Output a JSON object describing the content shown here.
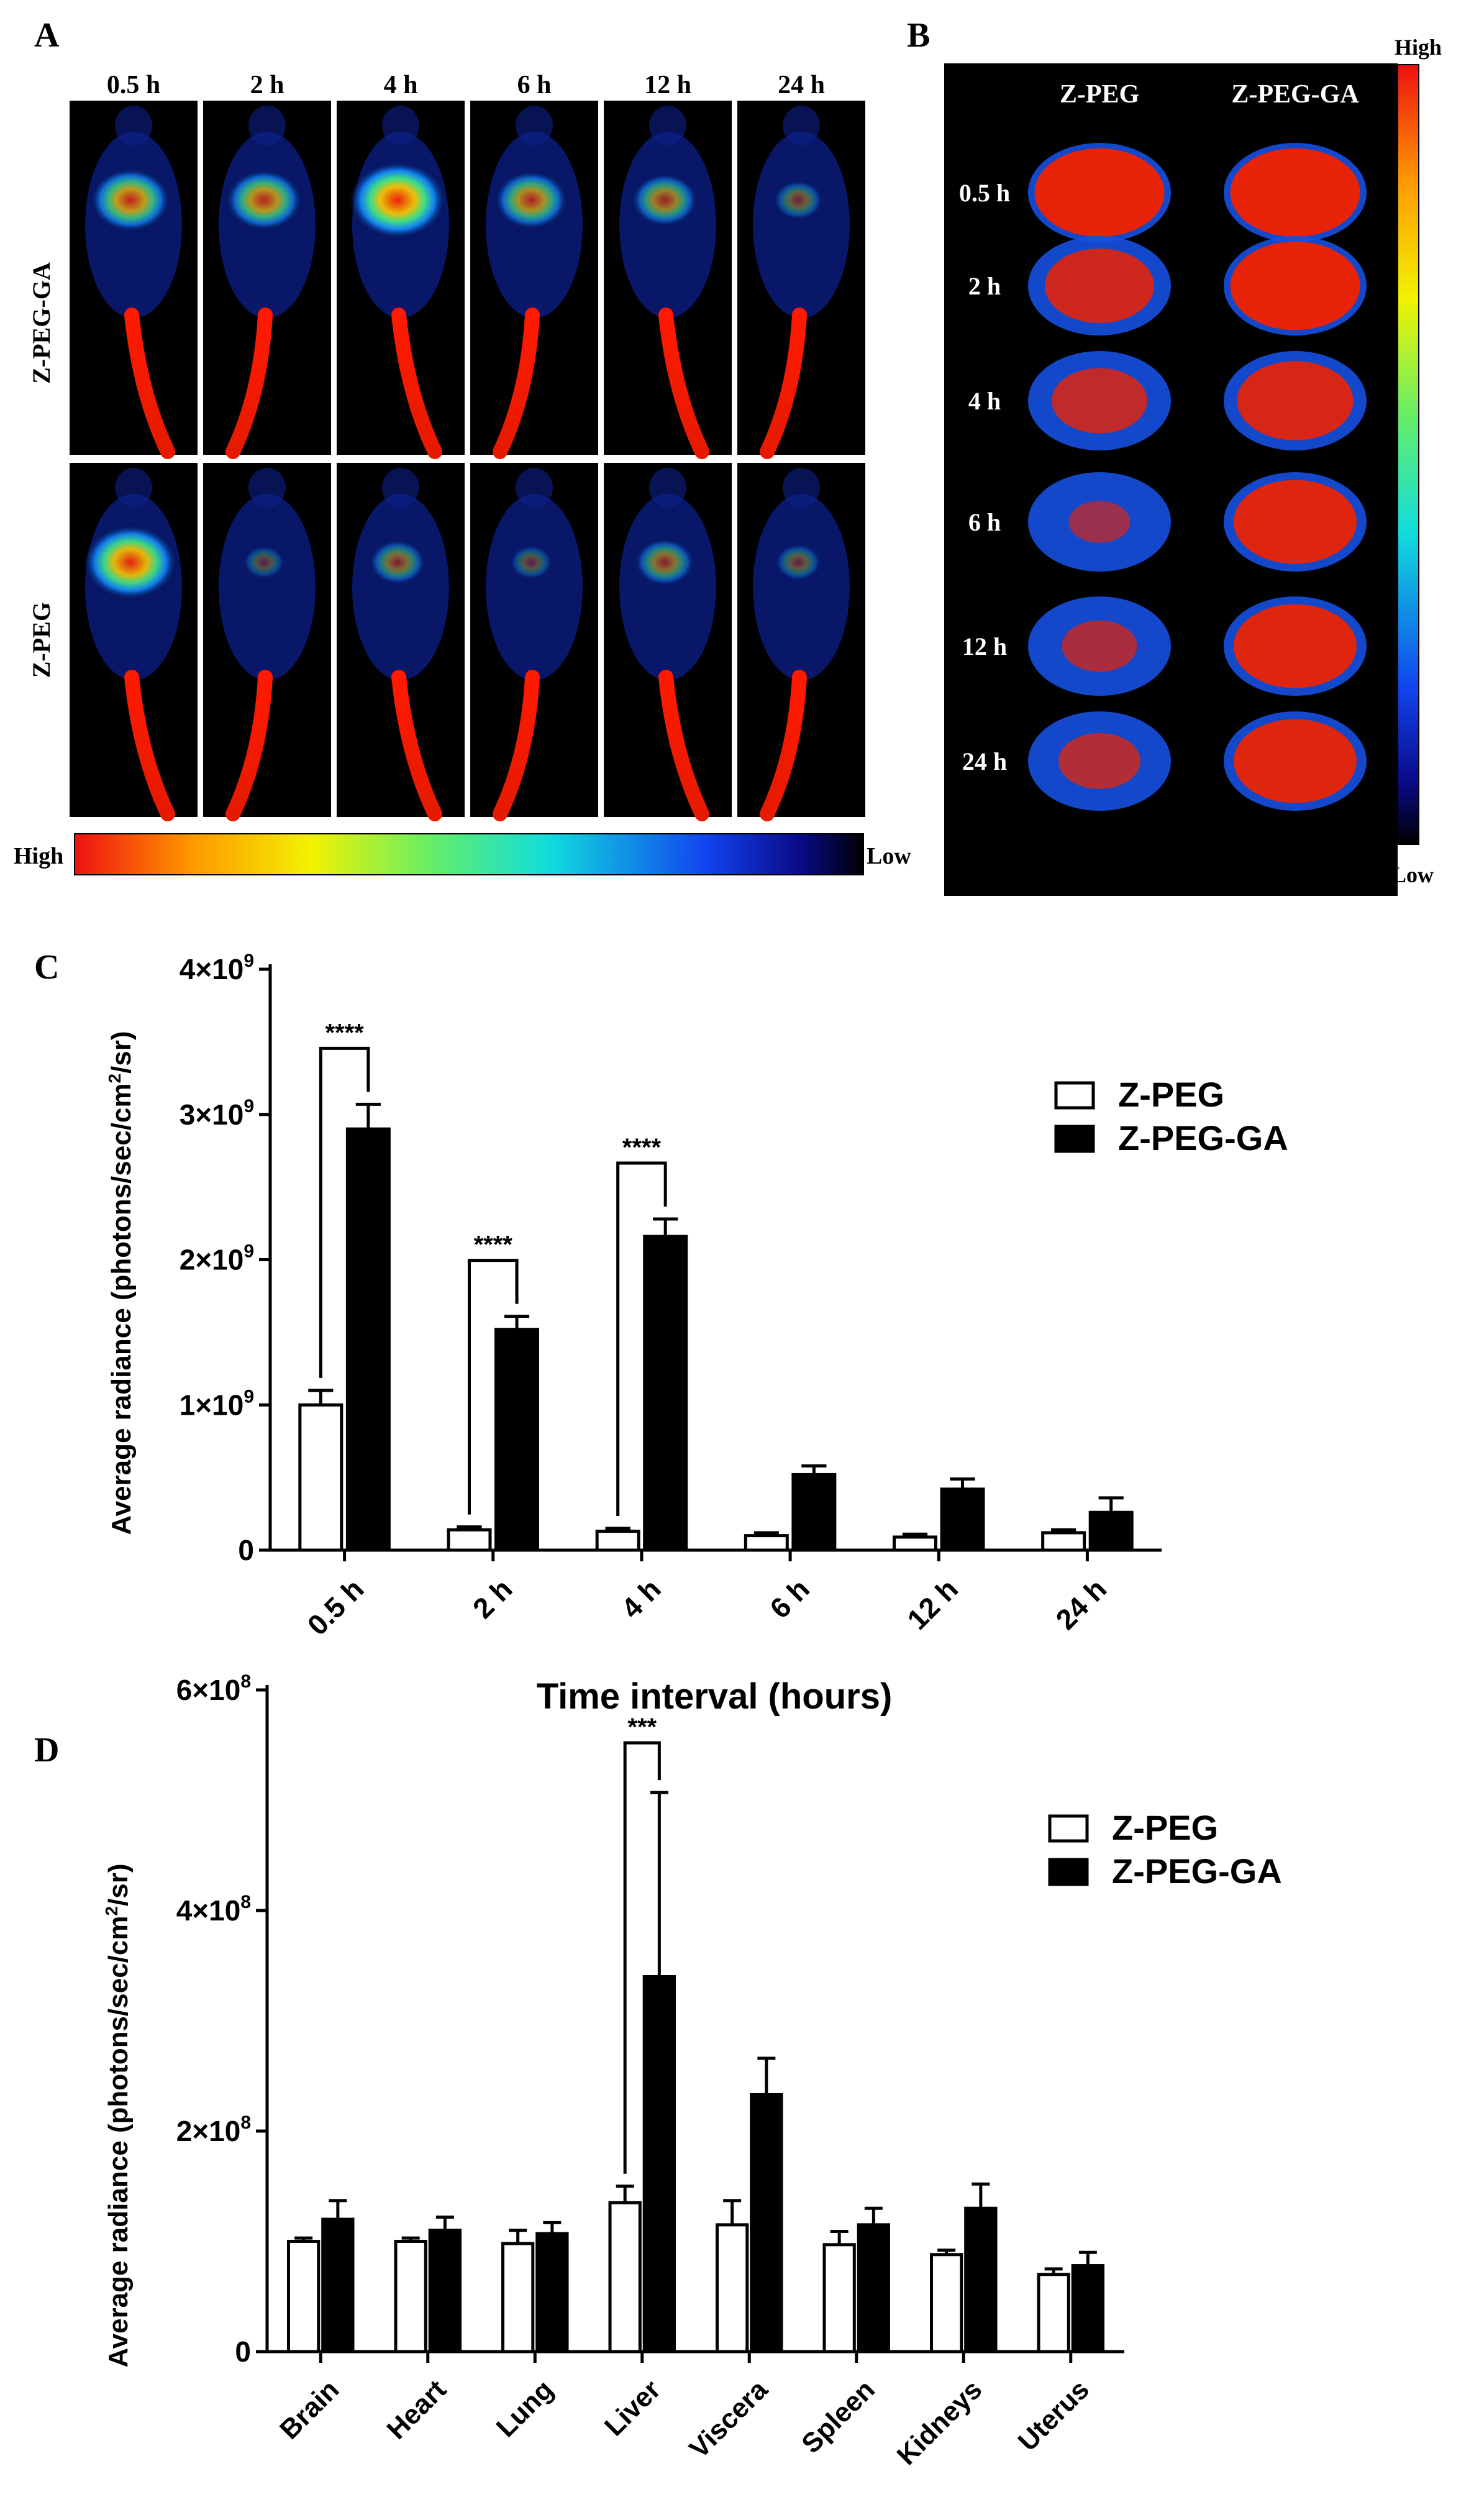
{
  "panel_a": {
    "label": "A",
    "time_labels": [
      "0.5 h",
      "2 h",
      "4 h",
      "6 h",
      "12 h",
      "24 h"
    ],
    "row_labels": [
      "Z-PEG-GA",
      "Z-PEG"
    ],
    "scale_high": "High",
    "scale_low": "Low",
    "intensities": {
      "Z-PEG-GA": [
        0.65,
        0.6,
        0.9,
        0.55,
        0.45,
        0.2
      ],
      "Z-PEG": [
        0.85,
        0.08,
        0.3,
        0.1,
        0.35,
        0.15
      ]
    }
  },
  "panel_b": {
    "label": "B",
    "col_labels": [
      "Z-PEG",
      "Z-PEG-GA"
    ],
    "row_labels": [
      "0.5 h",
      "2 h",
      "4 h",
      "6 h",
      "12 h",
      "24 h"
    ],
    "scale_high": "High",
    "scale_low": "Low",
    "intensities": {
      "Z-PEG": [
        0.95,
        0.8,
        0.7,
        0.45,
        0.55,
        0.6
      ],
      "Z-PEG-GA": [
        0.95,
        0.95,
        0.85,
        0.9,
        0.9,
        0.9
      ]
    }
  },
  "colors": {
    "bar_open": "#ffffff",
    "bar_filled": "#000000",
    "axis": "#000000",
    "image_bg": "#000000"
  },
  "chart_data": [
    {
      "panel_label": "C",
      "type": "bar",
      "title": "",
      "xlabel": "Time interval (hours)",
      "ylabel": "Average radiance (photons/sec/cm²/sr)",
      "y_ticks": [
        {
          "value": 0,
          "base": "0",
          "exp": ""
        },
        {
          "value": 1000000000,
          "base": "1×10",
          "exp": "9"
        },
        {
          "value": 2000000000,
          "base": "2×10",
          "exp": "9"
        },
        {
          "value": 3000000000,
          "base": "3×10",
          "exp": "9"
        },
        {
          "value": 4000000000,
          "base": "4×10",
          "exp": "9"
        }
      ],
      "ylim": [
        0,
        4000000000
      ],
      "categories": [
        "0.5 h",
        "2 h",
        "4 h",
        "6 h",
        "12 h",
        "24 h"
      ],
      "series": [
        {
          "name": "Z-PEG",
          "style": "open",
          "values": [
            1000000000,
            140000000,
            130000000,
            100000000,
            90000000,
            120000000
          ],
          "errors": [
            100000000,
            20000000,
            20000000,
            20000000,
            20000000,
            20000000
          ]
        },
        {
          "name": "Z-PEG-GA",
          "style": "filled",
          "values": [
            2900000000,
            1520000000,
            2160000000,
            520000000,
            420000000,
            260000000
          ],
          "errors": [
            170000000,
            90000000,
            120000000,
            60000000,
            70000000,
            100000000
          ]
        }
      ],
      "significance": [
        {
          "category_index": 0,
          "label": "****"
        },
        {
          "category_index": 1,
          "label": "****"
        },
        {
          "category_index": 2,
          "label": "****"
        }
      ],
      "legend_position": "top-right"
    },
    {
      "panel_label": "D",
      "type": "bar",
      "title": "",
      "xlabel": "",
      "ylabel": "Average radiance (photons/sec/cm²/sr)",
      "y_ticks": [
        {
          "value": 0,
          "base": "0",
          "exp": ""
        },
        {
          "value": 200000000,
          "base": "2×10",
          "exp": "8"
        },
        {
          "value": 400000000,
          "base": "4×10",
          "exp": "8"
        },
        {
          "value": 600000000,
          "base": "6×10",
          "exp": "8"
        }
      ],
      "ylim": [
        0,
        600000000
      ],
      "categories": [
        "Brain",
        "Heart",
        "Lung",
        "Liver",
        "Viscera",
        "Spleen",
        "Kidneys",
        "Uterus"
      ],
      "series": [
        {
          "name": "Z-PEG",
          "style": "open",
          "values": [
            100000000,
            100000000,
            98000000,
            135000000,
            115000000,
            97000000,
            88000000,
            70000000
          ],
          "errors": [
            3000000,
            3000000,
            12000000,
            15000000,
            22000000,
            12000000,
            4000000,
            5000000
          ]
        },
        {
          "name": "Z-PEG-GA",
          "style": "filled",
          "values": [
            120000000,
            110000000,
            107000000,
            340000000,
            233000000,
            115000000,
            130000000,
            78000000
          ],
          "errors": [
            17000000,
            12000000,
            10000000,
            167000000,
            33000000,
            15000000,
            22000000,
            12000000
          ]
        }
      ],
      "significance": [
        {
          "category_index": 3,
          "label": "***"
        }
      ],
      "legend_position": "top-right"
    }
  ]
}
